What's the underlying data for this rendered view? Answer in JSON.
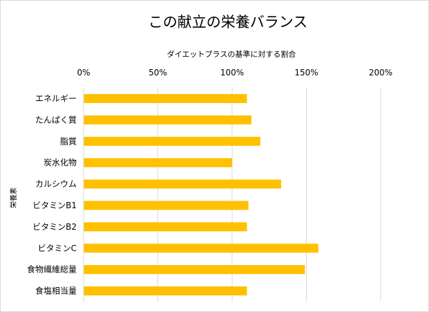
{
  "chart_data": {
    "type": "bar",
    "orientation": "horizontal",
    "title": "この献立の栄養バランス",
    "xlabel": "ダイエットプラスの基準に対する割合",
    "ylabel": "栄養素",
    "categories": [
      "エネルギー",
      "たんぱく質",
      "脂質",
      "炭水化物",
      "カルシウム",
      "ビタミンB1",
      "ビタミンB2",
      "ビタミンC",
      "食物繊維総量",
      "食塩相当量"
    ],
    "values": [
      110,
      113,
      119,
      100,
      133,
      111,
      110,
      158,
      149,
      110
    ],
    "unit": "%",
    "xlim": [
      0,
      200
    ],
    "xticks": [
      0,
      50,
      100,
      150,
      200
    ],
    "xtick_labels": [
      "0%",
      "50%",
      "100%",
      "150%",
      "200%"
    ],
    "x_axis_position": "top",
    "grid": true,
    "legend": "none",
    "bar_color": "#FFC000"
  }
}
